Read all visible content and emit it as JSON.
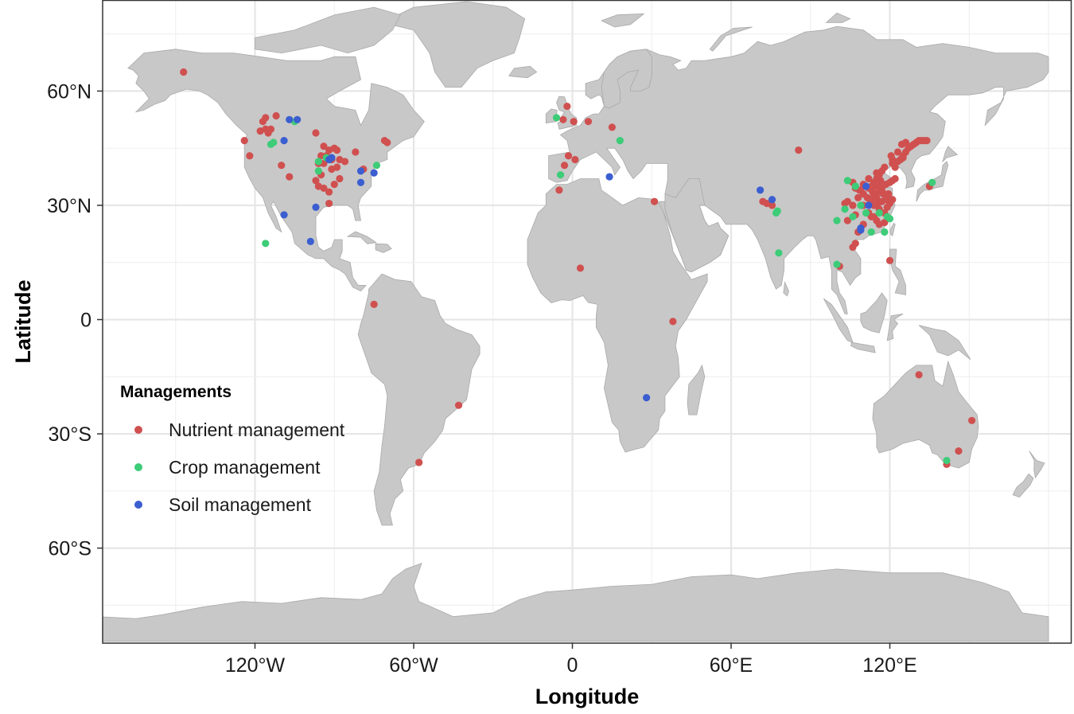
{
  "chart_data": {
    "type": "scatter",
    "xlabel": "Longitude",
    "ylabel": "Latitude",
    "xlim": [
      -180,
      180
    ],
    "ylim": [
      -85,
      84
    ],
    "x_ticks": [
      -120,
      -60,
      0,
      60,
      120
    ],
    "x_tick_labels": [
      "120°W",
      "60°W",
      "0",
      "60°E",
      "120°E"
    ],
    "y_ticks": [
      60,
      30,
      0,
      -30,
      -60
    ],
    "y_tick_labels": [
      "60°N",
      "30°N",
      "0",
      "30°S",
      "60°S"
    ],
    "grid": true,
    "basemap": "world countries",
    "legend": {
      "title": "Managements",
      "placement": "bottom-left, inside plot"
    },
    "series": [
      {
        "name": "Nutrient management",
        "color": "#d05050",
        "points": [
          [
            -147,
            65
          ],
          [
            -116,
            53
          ],
          [
            -112,
            53.5
          ],
          [
            -118,
            49.5
          ],
          [
            -116,
            50
          ],
          [
            -114,
            50
          ],
          [
            -117,
            52
          ],
          [
            -115,
            49
          ],
          [
            -124,
            47
          ],
          [
            -122,
            43
          ],
          [
            -110,
            40.5
          ],
          [
            -107,
            37.5
          ],
          [
            -97,
            49
          ],
          [
            -94,
            45.5
          ],
          [
            -92,
            44.5
          ],
          [
            -90,
            45
          ],
          [
            -89,
            44.5
          ],
          [
            -93,
            43
          ],
          [
            -95,
            43
          ],
          [
            -88,
            42
          ],
          [
            -96,
            41
          ],
          [
            -94,
            41
          ],
          [
            -91,
            42
          ],
          [
            -86,
            41.5
          ],
          [
            -89,
            40
          ],
          [
            -91,
            39.5
          ],
          [
            -95,
            38
          ],
          [
            -97,
            36.5
          ],
          [
            -96,
            35
          ],
          [
            -94,
            34.5
          ],
          [
            -90,
            35.5
          ],
          [
            -92,
            33.5
          ],
          [
            -88,
            37
          ],
          [
            -92,
            30.5
          ],
          [
            -82,
            44
          ],
          [
            -79,
            39.5
          ],
          [
            -71,
            47
          ],
          [
            -70,
            46.5
          ],
          [
            -75,
            4
          ],
          [
            -43,
            -22.5
          ],
          [
            -58,
            -37.5
          ],
          [
            -2,
            56
          ],
          [
            -3.5,
            52.5
          ],
          [
            0.5,
            52
          ],
          [
            6,
            52
          ],
          [
            15,
            50.5
          ],
          [
            -1.5,
            43
          ],
          [
            -3,
            40.5
          ],
          [
            1,
            42
          ],
          [
            -5,
            34
          ],
          [
            3,
            13.5
          ],
          [
            31,
            31
          ],
          [
            38,
            -0.5
          ],
          [
            85.5,
            44.5
          ],
          [
            72,
            31
          ],
          [
            73.5,
            30.5
          ],
          [
            75.5,
            30
          ],
          [
            101,
            14
          ],
          [
            103,
            30.5
          ],
          [
            104,
            31
          ],
          [
            106,
            30
          ],
          [
            104,
            26
          ],
          [
            107,
            27.5
          ],
          [
            106,
            36
          ],
          [
            107,
            34.5
          ],
          [
            108.5,
            34
          ],
          [
            110,
            35.5
          ],
          [
            112,
            34.5
          ],
          [
            113,
            35
          ],
          [
            114,
            36
          ],
          [
            115,
            37
          ],
          [
            116,
            38
          ],
          [
            117,
            39
          ],
          [
            118,
            40
          ],
          [
            116.5,
            36.5
          ],
          [
            117,
            34.5
          ],
          [
            118,
            33
          ],
          [
            119,
            32
          ],
          [
            120,
            31
          ],
          [
            113,
            31
          ],
          [
            114,
            30
          ],
          [
            116,
            29
          ],
          [
            112,
            28
          ],
          [
            113,
            27
          ],
          [
            115,
            26
          ],
          [
            118,
            28
          ],
          [
            119,
            29.5
          ],
          [
            120,
            30.5
          ],
          [
            121,
            31.5
          ],
          [
            119.5,
            33
          ],
          [
            121,
            36.5
          ],
          [
            122,
            37
          ],
          [
            120,
            36
          ],
          [
            118.5,
            35.5
          ],
          [
            115,
            32
          ],
          [
            114,
            32.5
          ],
          [
            116,
            33.5
          ],
          [
            117.5,
            33
          ],
          [
            113.5,
            33.5
          ],
          [
            111.5,
            32
          ],
          [
            110,
            33
          ],
          [
            109,
            34
          ],
          [
            108,
            32
          ],
          [
            110,
            30
          ],
          [
            112.5,
            30.5
          ],
          [
            115.5,
            30.5
          ],
          [
            117,
            31
          ],
          [
            118.5,
            31.5
          ],
          [
            116,
            35
          ],
          [
            114.5,
            35
          ],
          [
            112,
            37
          ],
          [
            115,
            38.5
          ],
          [
            114,
            27
          ],
          [
            116,
            25
          ],
          [
            118,
            25.5
          ],
          [
            110,
            25
          ],
          [
            108,
            23
          ],
          [
            107,
            20
          ],
          [
            106,
            19
          ],
          [
            120,
            15.5
          ],
          [
            122,
            40
          ],
          [
            121,
            41
          ],
          [
            123,
            41.5
          ],
          [
            124,
            42
          ],
          [
            125,
            43
          ],
          [
            126,
            44
          ],
          [
            127,
            45
          ],
          [
            128,
            45.5
          ],
          [
            129,
            46
          ],
          [
            130,
            46.5
          ],
          [
            131,
            47
          ],
          [
            132,
            47
          ],
          [
            133,
            47
          ],
          [
            134,
            47
          ],
          [
            124.5,
            46
          ],
          [
            126,
            46.5
          ],
          [
            123,
            44
          ],
          [
            125,
            42.5
          ],
          [
            121,
            42
          ],
          [
            120.5,
            43
          ],
          [
            135,
            35
          ],
          [
            131,
            -14.5
          ],
          [
            151,
            -26.5
          ],
          [
            146,
            -34.5
          ],
          [
            141.5,
            -38
          ]
        ]
      },
      {
        "name": "Crop management",
        "color": "#3dcc78",
        "points": [
          [
            -114,
            46
          ],
          [
            -113,
            46.5
          ],
          [
            -105,
            52
          ],
          [
            -96,
            41.5
          ],
          [
            -96,
            39
          ],
          [
            -93,
            42.5
          ],
          [
            -74,
            40.5
          ],
          [
            -116,
            20
          ],
          [
            -6,
            53
          ],
          [
            -4.5,
            38
          ],
          [
            18,
            47
          ],
          [
            77.5,
            28.5
          ],
          [
            77,
            28
          ],
          [
            78,
            17.5
          ],
          [
            100,
            26
          ],
          [
            103,
            29
          ],
          [
            106,
            27
          ],
          [
            104,
            36.5
          ],
          [
            107,
            35
          ],
          [
            109,
            30
          ],
          [
            111,
            28
          ],
          [
            113,
            23
          ],
          [
            116,
            28
          ],
          [
            119,
            27
          ],
          [
            120,
            26.5
          ],
          [
            118,
            23
          ],
          [
            100,
            14.5
          ],
          [
            136,
            36
          ],
          [
            141.5,
            -37
          ]
        ]
      },
      {
        "name": "Soil management",
        "color": "#3b5ed0",
        "points": [
          [
            -107,
            52.5
          ],
          [
            -104,
            52.5
          ],
          [
            -109,
            47
          ],
          [
            -92,
            42
          ],
          [
            -91,
            42.5
          ],
          [
            -80,
            39
          ],
          [
            -80,
            36
          ],
          [
            -75,
            38.5
          ],
          [
            -97,
            29.5
          ],
          [
            -109,
            27.5
          ],
          [
            -99,
            20.5
          ],
          [
            14,
            37.5
          ],
          [
            71,
            34
          ],
          [
            75.5,
            31.5
          ],
          [
            109,
            24
          ],
          [
            109,
            23.5
          ],
          [
            111,
            35
          ],
          [
            112,
            30
          ],
          [
            28,
            -20.5
          ]
        ]
      }
    ]
  }
}
